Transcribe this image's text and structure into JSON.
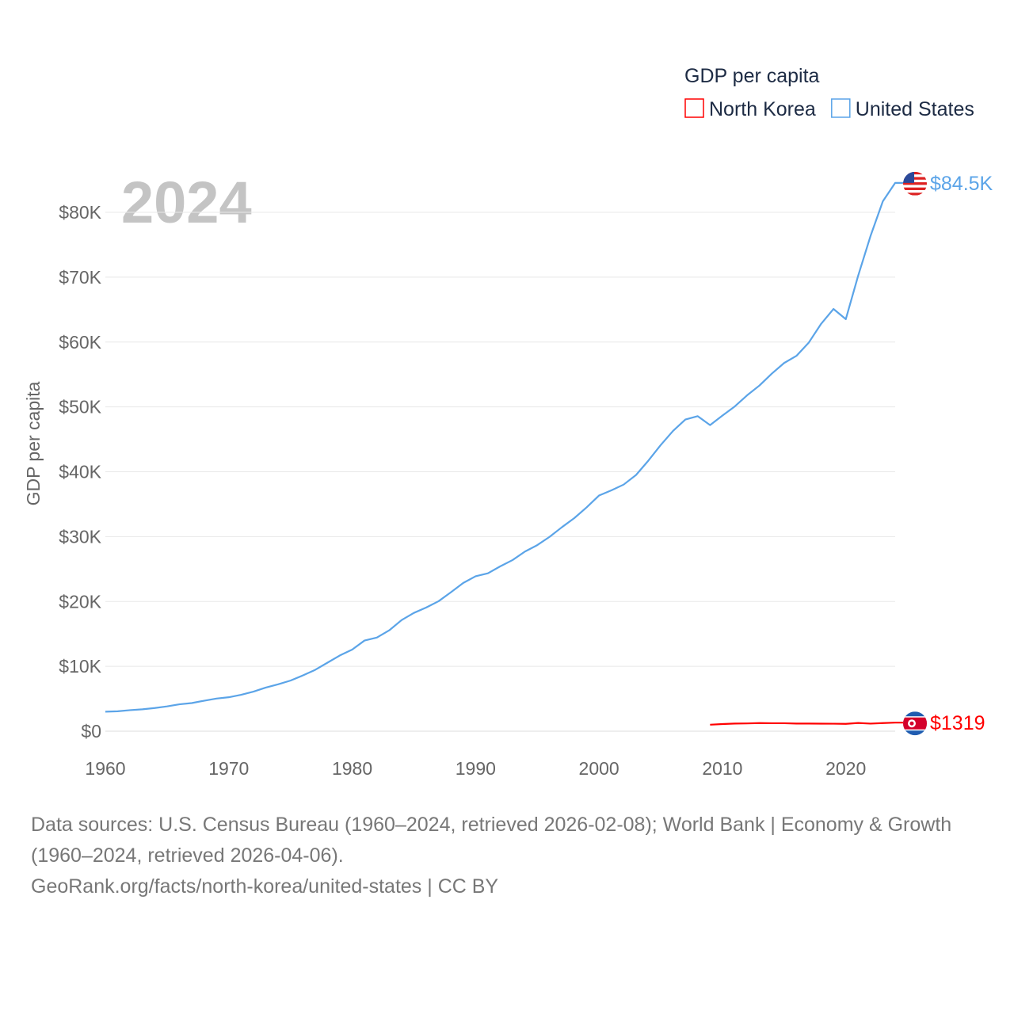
{
  "chart_data": {
    "type": "line",
    "title": "GDP per capita",
    "year_label": "2024",
    "ylabel": "GDP per capita",
    "xlabel": "",
    "xlim": [
      1960,
      2024
    ],
    "ylim": [
      0,
      80000
    ],
    "x_ticks": [
      "1960",
      "1970",
      "1980",
      "1990",
      "2000",
      "2010",
      "2020"
    ],
    "y_ticks": [
      "$0",
      "$10K",
      "$20K",
      "$30K",
      "$40K",
      "$50K",
      "$60K",
      "$70K",
      "$80K"
    ],
    "grid": true,
    "legend_position": "top-right",
    "series": [
      {
        "name": "North Korea",
        "color": "#ff0000",
        "end_label": "$1319",
        "x": [
          2009,
          2010,
          2011,
          2012,
          2013,
          2014,
          2015,
          2016,
          2017,
          2018,
          2019,
          2020,
          2021,
          2022,
          2023,
          2024
        ],
        "values": [
          1000,
          1100,
          1180,
          1200,
          1250,
          1230,
          1230,
          1180,
          1180,
          1160,
          1150,
          1130,
          1270,
          1170,
          1250,
          1319
        ]
      },
      {
        "name": "United States",
        "color": "#5ba4e8",
        "end_label": "$84.5K",
        "x": [
          1960,
          1961,
          1962,
          1963,
          1964,
          1965,
          1966,
          1967,
          1968,
          1969,
          1970,
          1971,
          1972,
          1973,
          1974,
          1975,
          1976,
          1977,
          1978,
          1979,
          1980,
          1981,
          1982,
          1983,
          1984,
          1985,
          1986,
          1987,
          1988,
          1989,
          1990,
          1991,
          1992,
          1993,
          1994,
          1995,
          1996,
          1997,
          1998,
          1999,
          2000,
          2001,
          2002,
          2003,
          2004,
          2005,
          2006,
          2007,
          2008,
          2009,
          2010,
          2011,
          2012,
          2013,
          2014,
          2015,
          2016,
          2017,
          2018,
          2019,
          2020,
          2021,
          2022,
          2023,
          2024
        ],
        "values": [
          3007,
          3067,
          3244,
          3375,
          3574,
          3828,
          4146,
          4336,
          4696,
          5032,
          5234,
          5609,
          6094,
          6726,
          7226,
          7801,
          8592,
          9453,
          10565,
          11674,
          12575,
          13976,
          14434,
          15544,
          17121,
          18237,
          19071,
          20039,
          21417,
          22857,
          23889,
          24342,
          25419,
          26387,
          27695,
          28691,
          29968,
          31459,
          32854,
          34515,
          36330,
          37134,
          38023,
          39496,
          41713,
          44115,
          46299,
          48050,
          48570,
          47195,
          48651,
          50066,
          51784,
          53291,
          55124,
          56763,
          57867,
          59915,
          62805,
          65095,
          63528,
          70219,
          76330,
          81695,
          84534
        ]
      }
    ]
  },
  "sources": {
    "line1": "Data sources: U.S. Census Bureau (1960–2024, retrieved 2026-02-08); World Bank | Economy & Growth (1960–2024, retrieved 2026-04-06).",
    "line2": "GeoRank.org/facts/north-korea/united-states | CC BY"
  }
}
